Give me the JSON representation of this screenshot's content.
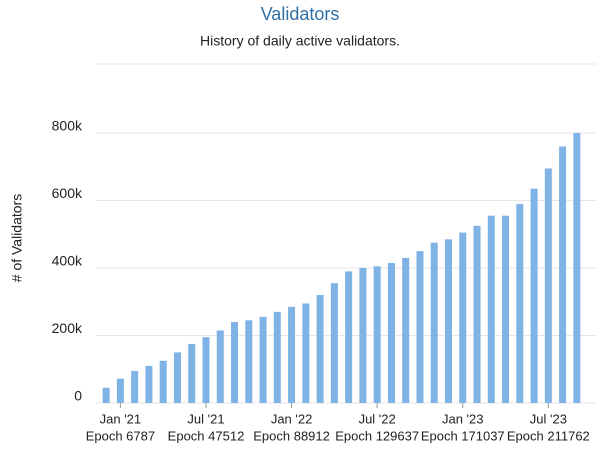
{
  "chart_data": {
    "type": "bar",
    "title": "Validators",
    "subtitle": "History of daily active validators.",
    "y_label": "# of Validators",
    "color": "#7fb2e5",
    "grid": true,
    "categories": [
      null,
      "Jan '21",
      null,
      null,
      null,
      null,
      null,
      "Jul '21",
      null,
      null,
      null,
      null,
      null,
      "Jan '22",
      null,
      null,
      null,
      null,
      null,
      "Jul '22",
      null,
      null,
      null,
      null,
      null,
      "Jan '23",
      null,
      null,
      null,
      null,
      null,
      "Jul '23",
      null,
      null
    ],
    "epoch_labels": [
      null,
      "Epoch 6787",
      null,
      null,
      null,
      null,
      null,
      "Epoch 47512",
      null,
      null,
      null,
      null,
      null,
      "Epoch 88912",
      null,
      null,
      null,
      null,
      null,
      "Epoch 129637",
      null,
      null,
      null,
      null,
      null,
      "Epoch 171037",
      null,
      null,
      null,
      null,
      null,
      "Epoch 211762",
      null,
      null
    ],
    "values": [
      45000,
      72000,
      95000,
      110000,
      125000,
      150000,
      175000,
      195000,
      215000,
      240000,
      245000,
      255000,
      270000,
      285000,
      295000,
      320000,
      355000,
      390000,
      400000,
      405000,
      415000,
      430000,
      450000,
      475000,
      485000,
      505000,
      525000,
      555000,
      555000,
      590000,
      635000,
      695000,
      760000,
      800000
    ],
    "ylim": [
      0,
      870000
    ],
    "yticks": [
      0,
      {
        "value": 200000,
        "label": "200k"
      },
      {
        "value": 400000,
        "label": "400k"
      },
      {
        "value": 600000,
        "label": "600k"
      },
      {
        "value": 800000,
        "label": "800k"
      }
    ]
  }
}
